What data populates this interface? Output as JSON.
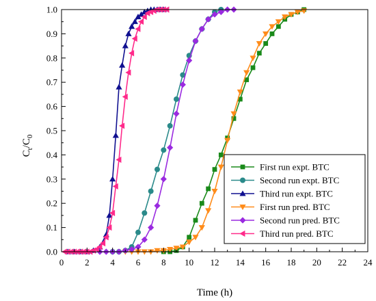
{
  "chart_data": {
    "type": "scatter",
    "xlabel": "Time (h)",
    "ylabel": {
      "main": "C",
      "sub1": "t",
      "slash": "/C",
      "sub2": "0"
    },
    "xlim": [
      0,
      24
    ],
    "ylim": [
      0,
      1.0
    ],
    "xticks": [
      0,
      2,
      4,
      6,
      8,
      10,
      12,
      14,
      16,
      18,
      20,
      22,
      24
    ],
    "yticks": [
      0.0,
      0.1,
      0.2,
      0.3,
      0.4,
      0.5,
      0.6,
      0.7,
      0.8,
      0.9,
      1.0
    ],
    "ytick_labels": [
      "0.0",
      "0.1",
      "0.2",
      "0.3",
      "0.4",
      "0.5",
      "0.6",
      "0.7",
      "0.8",
      "0.9",
      "1.0"
    ],
    "grid": false,
    "legend_position": "bottom-right",
    "series": [
      {
        "name": "First run expt. BTC",
        "color": "#1a8a1a",
        "marker": "square",
        "points": [
          [
            8.0,
            0.0
          ],
          [
            8.5,
            0.0
          ],
          [
            9.0,
            0.005
          ],
          [
            9.5,
            0.02
          ],
          [
            10.0,
            0.06
          ],
          [
            10.5,
            0.13
          ],
          [
            11.0,
            0.2
          ],
          [
            11.5,
            0.26
          ],
          [
            12.0,
            0.34
          ],
          [
            12.5,
            0.4
          ],
          [
            13.0,
            0.47
          ],
          [
            13.5,
            0.55
          ],
          [
            14.0,
            0.63
          ],
          [
            14.5,
            0.71
          ],
          [
            15.0,
            0.76
          ],
          [
            15.5,
            0.82
          ],
          [
            16.0,
            0.86
          ],
          [
            16.5,
            0.9
          ],
          [
            17.0,
            0.93
          ],
          [
            17.5,
            0.96
          ],
          [
            18.0,
            0.98
          ],
          [
            18.5,
            0.99
          ],
          [
            19.0,
            1.0
          ]
        ]
      },
      {
        "name": "Second run expt. BTC",
        "color": "#2a8a8a",
        "marker": "circle",
        "points": [
          [
            4.0,
            0.0
          ],
          [
            4.5,
            0.0
          ],
          [
            5.0,
            0.005
          ],
          [
            5.5,
            0.02
          ],
          [
            6.0,
            0.08
          ],
          [
            6.5,
            0.16
          ],
          [
            7.0,
            0.25
          ],
          [
            7.5,
            0.34
          ],
          [
            8.0,
            0.42
          ],
          [
            8.5,
            0.52
          ],
          [
            9.0,
            0.63
          ],
          [
            9.5,
            0.73
          ],
          [
            10.0,
            0.81
          ],
          [
            10.5,
            0.87
          ],
          [
            11.0,
            0.92
          ],
          [
            11.5,
            0.96
          ],
          [
            12.0,
            0.99
          ],
          [
            12.5,
            1.0
          ]
        ]
      },
      {
        "name": "Third run expt. BTC",
        "color": "#101090",
        "marker": "triangle-up",
        "points": [
          [
            0.5,
            0.0
          ],
          [
            1.0,
            0.0
          ],
          [
            1.5,
            0.0
          ],
          [
            2.0,
            0.0
          ],
          [
            2.5,
            0.005
          ],
          [
            3.0,
            0.02
          ],
          [
            3.5,
            0.07
          ],
          [
            3.75,
            0.15
          ],
          [
            4.0,
            0.3
          ],
          [
            4.25,
            0.48
          ],
          [
            4.5,
            0.68
          ],
          [
            4.75,
            0.77
          ],
          [
            5.0,
            0.85
          ],
          [
            5.25,
            0.9
          ],
          [
            5.5,
            0.93
          ],
          [
            5.75,
            0.95
          ],
          [
            6.0,
            0.97
          ],
          [
            6.25,
            0.98
          ],
          [
            6.5,
            0.99
          ],
          [
            6.75,
            0.995
          ],
          [
            7.0,
            1.0
          ],
          [
            7.25,
            1.0
          ],
          [
            7.5,
            1.0
          ],
          [
            7.75,
            1.0
          ],
          [
            8.0,
            1.0
          ]
        ]
      },
      {
        "name": "First run pred. BTC",
        "color": "#ff8c1a",
        "marker": "triangle-down",
        "points": [
          [
            5.0,
            0.0
          ],
          [
            5.5,
            0.0
          ],
          [
            6.0,
            0.0
          ],
          [
            6.5,
            0.0
          ],
          [
            7.0,
            0.0
          ],
          [
            7.5,
            0.005
          ],
          [
            8.0,
            0.005
          ],
          [
            8.5,
            0.01
          ],
          [
            9.0,
            0.015
          ],
          [
            9.5,
            0.02
          ],
          [
            10.0,
            0.04
          ],
          [
            10.5,
            0.06
          ],
          [
            11.0,
            0.1
          ],
          [
            11.5,
            0.17
          ],
          [
            12.0,
            0.25
          ],
          [
            12.5,
            0.35
          ],
          [
            13.0,
            0.46
          ],
          [
            13.5,
            0.57
          ],
          [
            14.0,
            0.66
          ],
          [
            14.5,
            0.74
          ],
          [
            15.0,
            0.8
          ],
          [
            15.5,
            0.86
          ],
          [
            16.0,
            0.9
          ],
          [
            16.5,
            0.93
          ],
          [
            17.0,
            0.95
          ],
          [
            17.5,
            0.97
          ],
          [
            18.0,
            0.98
          ],
          [
            18.5,
            0.99
          ],
          [
            19.0,
            0.995
          ]
        ]
      },
      {
        "name": "Second run pred. BTC",
        "color": "#9a2ae0",
        "marker": "diamond",
        "points": [
          [
            3.0,
            0.0
          ],
          [
            3.5,
            0.0
          ],
          [
            4.0,
            0.0
          ],
          [
            4.5,
            0.0
          ],
          [
            5.0,
            0.005
          ],
          [
            5.5,
            0.01
          ],
          [
            6.0,
            0.02
          ],
          [
            6.5,
            0.05
          ],
          [
            7.0,
            0.1
          ],
          [
            7.5,
            0.19
          ],
          [
            8.0,
            0.3
          ],
          [
            8.5,
            0.43
          ],
          [
            9.0,
            0.57
          ],
          [
            9.5,
            0.69
          ],
          [
            10.0,
            0.79
          ],
          [
            10.5,
            0.87
          ],
          [
            11.0,
            0.92
          ],
          [
            11.5,
            0.96
          ],
          [
            12.0,
            0.98
          ],
          [
            12.5,
            0.99
          ],
          [
            13.0,
            1.0
          ],
          [
            13.5,
            1.0
          ]
        ]
      },
      {
        "name": "Third run pred. BTC",
        "color": "#ff2a8a",
        "marker": "triangle-left",
        "points": [
          [
            0.25,
            0.0
          ],
          [
            0.5,
            0.0
          ],
          [
            0.75,
            0.0
          ],
          [
            1.0,
            0.0
          ],
          [
            1.25,
            0.0
          ],
          [
            1.5,
            0.0
          ],
          [
            1.75,
            0.0
          ],
          [
            2.0,
            0.0
          ],
          [
            2.25,
            0.0
          ],
          [
            2.5,
            0.005
          ],
          [
            2.75,
            0.01
          ],
          [
            3.0,
            0.02
          ],
          [
            3.25,
            0.035
          ],
          [
            3.5,
            0.06
          ],
          [
            3.75,
            0.1
          ],
          [
            4.0,
            0.16
          ],
          [
            4.25,
            0.27
          ],
          [
            4.5,
            0.38
          ],
          [
            4.75,
            0.52
          ],
          [
            5.0,
            0.64
          ],
          [
            5.25,
            0.74
          ],
          [
            5.5,
            0.82
          ],
          [
            5.75,
            0.88
          ],
          [
            6.0,
            0.92
          ],
          [
            6.25,
            0.95
          ],
          [
            6.5,
            0.97
          ],
          [
            6.75,
            0.985
          ],
          [
            7.0,
            0.99
          ],
          [
            7.25,
            0.995
          ],
          [
            7.5,
            1.0
          ],
          [
            7.75,
            1.0
          ],
          [
            8.0,
            1.0
          ],
          [
            8.25,
            1.0
          ]
        ]
      }
    ]
  }
}
